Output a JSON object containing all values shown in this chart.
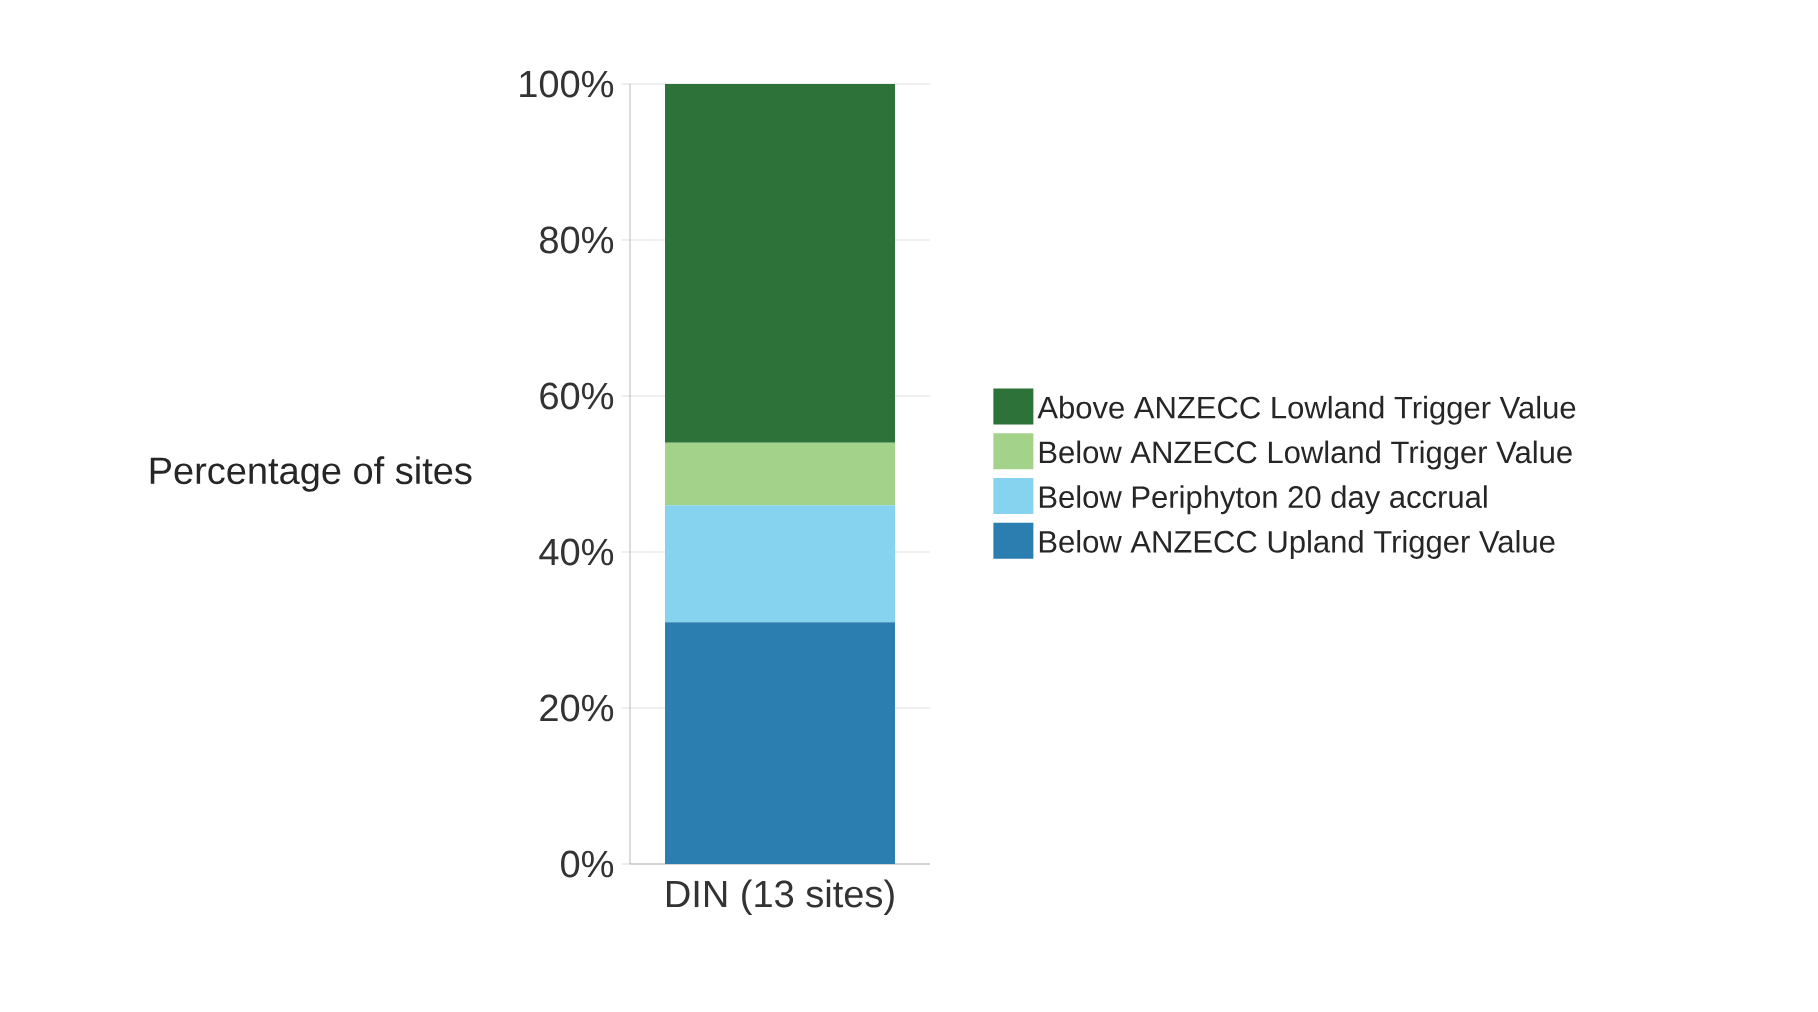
{
  "chart_data": {
    "type": "bar",
    "stacked": true,
    "categories": [
      "DIN (13 sites)"
    ],
    "ylabel": "Percentage of sites",
    "series": [
      {
        "name": "Below ANZECC Upland Trigger Value",
        "color": "#2a7fb0",
        "values": [
          31
        ]
      },
      {
        "name": "Below Periphyton 20 day accrual",
        "color": "#86d3f0",
        "values": [
          15
        ]
      },
      {
        "name": "Below ANZECC Lowland Trigger Value",
        "color": "#a3d28a",
        "values": [
          8
        ]
      },
      {
        "name": "Above ANZECC Lowland Trigger Value",
        "color": "#2d7339",
        "values": [
          46
        ]
      }
    ],
    "ylim": [
      0,
      100
    ],
    "yticks": [
      {
        "value": 0,
        "label": "0%"
      },
      {
        "value": 20,
        "label": "20%"
      },
      {
        "value": 40,
        "label": "40%"
      },
      {
        "value": 60,
        "label": "60%"
      },
      {
        "value": 80,
        "label": "80%"
      },
      {
        "value": 100,
        "label": "100%"
      }
    ],
    "grid": "y",
    "legend": "right"
  }
}
